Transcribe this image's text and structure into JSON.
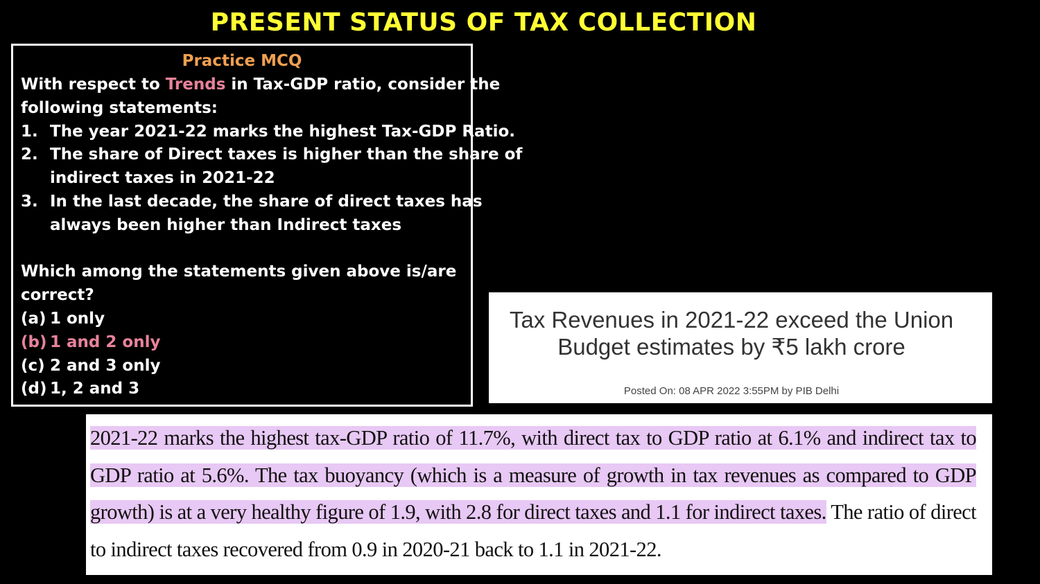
{
  "title": "PRESENT STATUS OF TAX COLLECTION",
  "mcq": {
    "heading": "Practice MCQ",
    "intro_pre": "With respect to ",
    "intro_highlight": "Trends",
    "intro_post": " in Tax-GDP ratio, consider the",
    "intro_line2": "following statements:",
    "statements": [
      {
        "num": "1.",
        "lines": [
          "The year 2021-22 marks the highest Tax-GDP Ratio."
        ]
      },
      {
        "num": "2.",
        "lines": [
          "The share of Direct taxes is higher than the share of",
          "indirect taxes in 2021-22"
        ]
      },
      {
        "num": "3.",
        "lines": [
          "In the last decade, the share of direct taxes has",
          "always been higher than Indirect taxes"
        ]
      }
    ],
    "question_line1": "Which among the statements given above is/are",
    "question_line2": "correct?",
    "options": [
      {
        "label": "(a)",
        "text": "1 only"
      },
      {
        "label": "(b)",
        "text": "1 and 2 only"
      },
      {
        "label": "(c)",
        "text": "2 and 3 only"
      },
      {
        "label": "(d)",
        "text": "1, 2 and 3"
      }
    ],
    "highlight_color": "#e8829a",
    "heading_color": "#f0a050"
  },
  "pib": {
    "headline_line1": "Tax Revenues in 2021-22 exceed the Union",
    "headline_line2": "Budget estimates by ₹5 lakh crore",
    "posted": "Posted On: 08 APR 2022 3:55PM by PIB Delhi"
  },
  "excerpt": {
    "highlighted": "2021-22 marks the highest tax-GDP ratio of 11.7%, with direct tax to GDP ratio at 6.1% and indirect tax to GDP ratio at 5.6%. The tax buoyancy (which is a measure of growth in tax revenues as compared to GDP growth) is at a very healthy figure of 1.9, with 2.8 for direct taxes and 1.1 for indirect taxes.",
    "rest": " The ratio of direct to indirect taxes recovered from 0.9 in 2020-21 back to 1.1 in 2021-22.",
    "highlight_color": "#e8c8f4"
  },
  "colors": {
    "title": "#ffff33",
    "background": "#000000"
  }
}
